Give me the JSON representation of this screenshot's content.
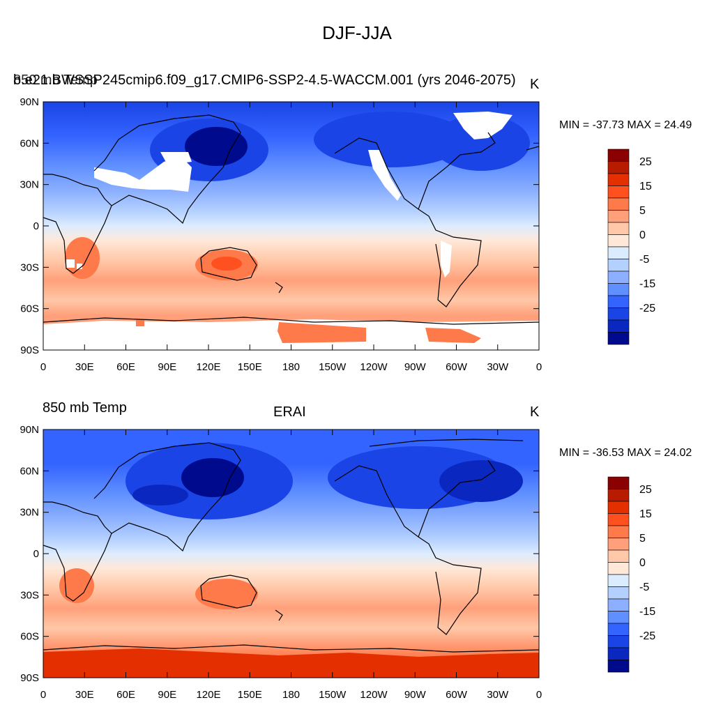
{
  "title": "DJF-JJA",
  "panels": [
    {
      "left_title_a": "b.e21.BWSSP245cmip6.f09_g17.CMIP6-SSP2-4.5-WACCM.001 (yrs 2046-2075)",
      "left_title_b": "850 mb Temp",
      "center_title": "",
      "units": "K",
      "stats": "MIN = -37.73 MAX =  24.49"
    },
    {
      "left_title_a": "",
      "left_title_b": "850 mb Temp",
      "center_title": "ERAI",
      "units": "K",
      "stats": "MIN = -36.53 MAX =  24.02"
    }
  ],
  "lat_ticks": [
    "90N",
    "60N",
    "30N",
    "0",
    "30S",
    "60S",
    "90S"
  ],
  "lon_ticks": [
    "0",
    "30E",
    "60E",
    "90E",
    "120E",
    "150E",
    "180",
    "150W",
    "120W",
    "90W",
    "60W",
    "30W",
    "0"
  ],
  "colorbar": {
    "labels": [
      "25",
      "15",
      "5",
      "0",
      "-5",
      "-15",
      "-25"
    ],
    "colors": [
      "#8b0000",
      "#b81c00",
      "#e43000",
      "#ff5020",
      "#ff7a4a",
      "#ffa07a",
      "#ffc8a8",
      "#ffe8d8",
      "#dcecff",
      "#b4d0ff",
      "#8cb0ff",
      "#6090ff",
      "#3464ff",
      "#1a44e6",
      "#0a28bf",
      "#000a8c"
    ]
  }
}
